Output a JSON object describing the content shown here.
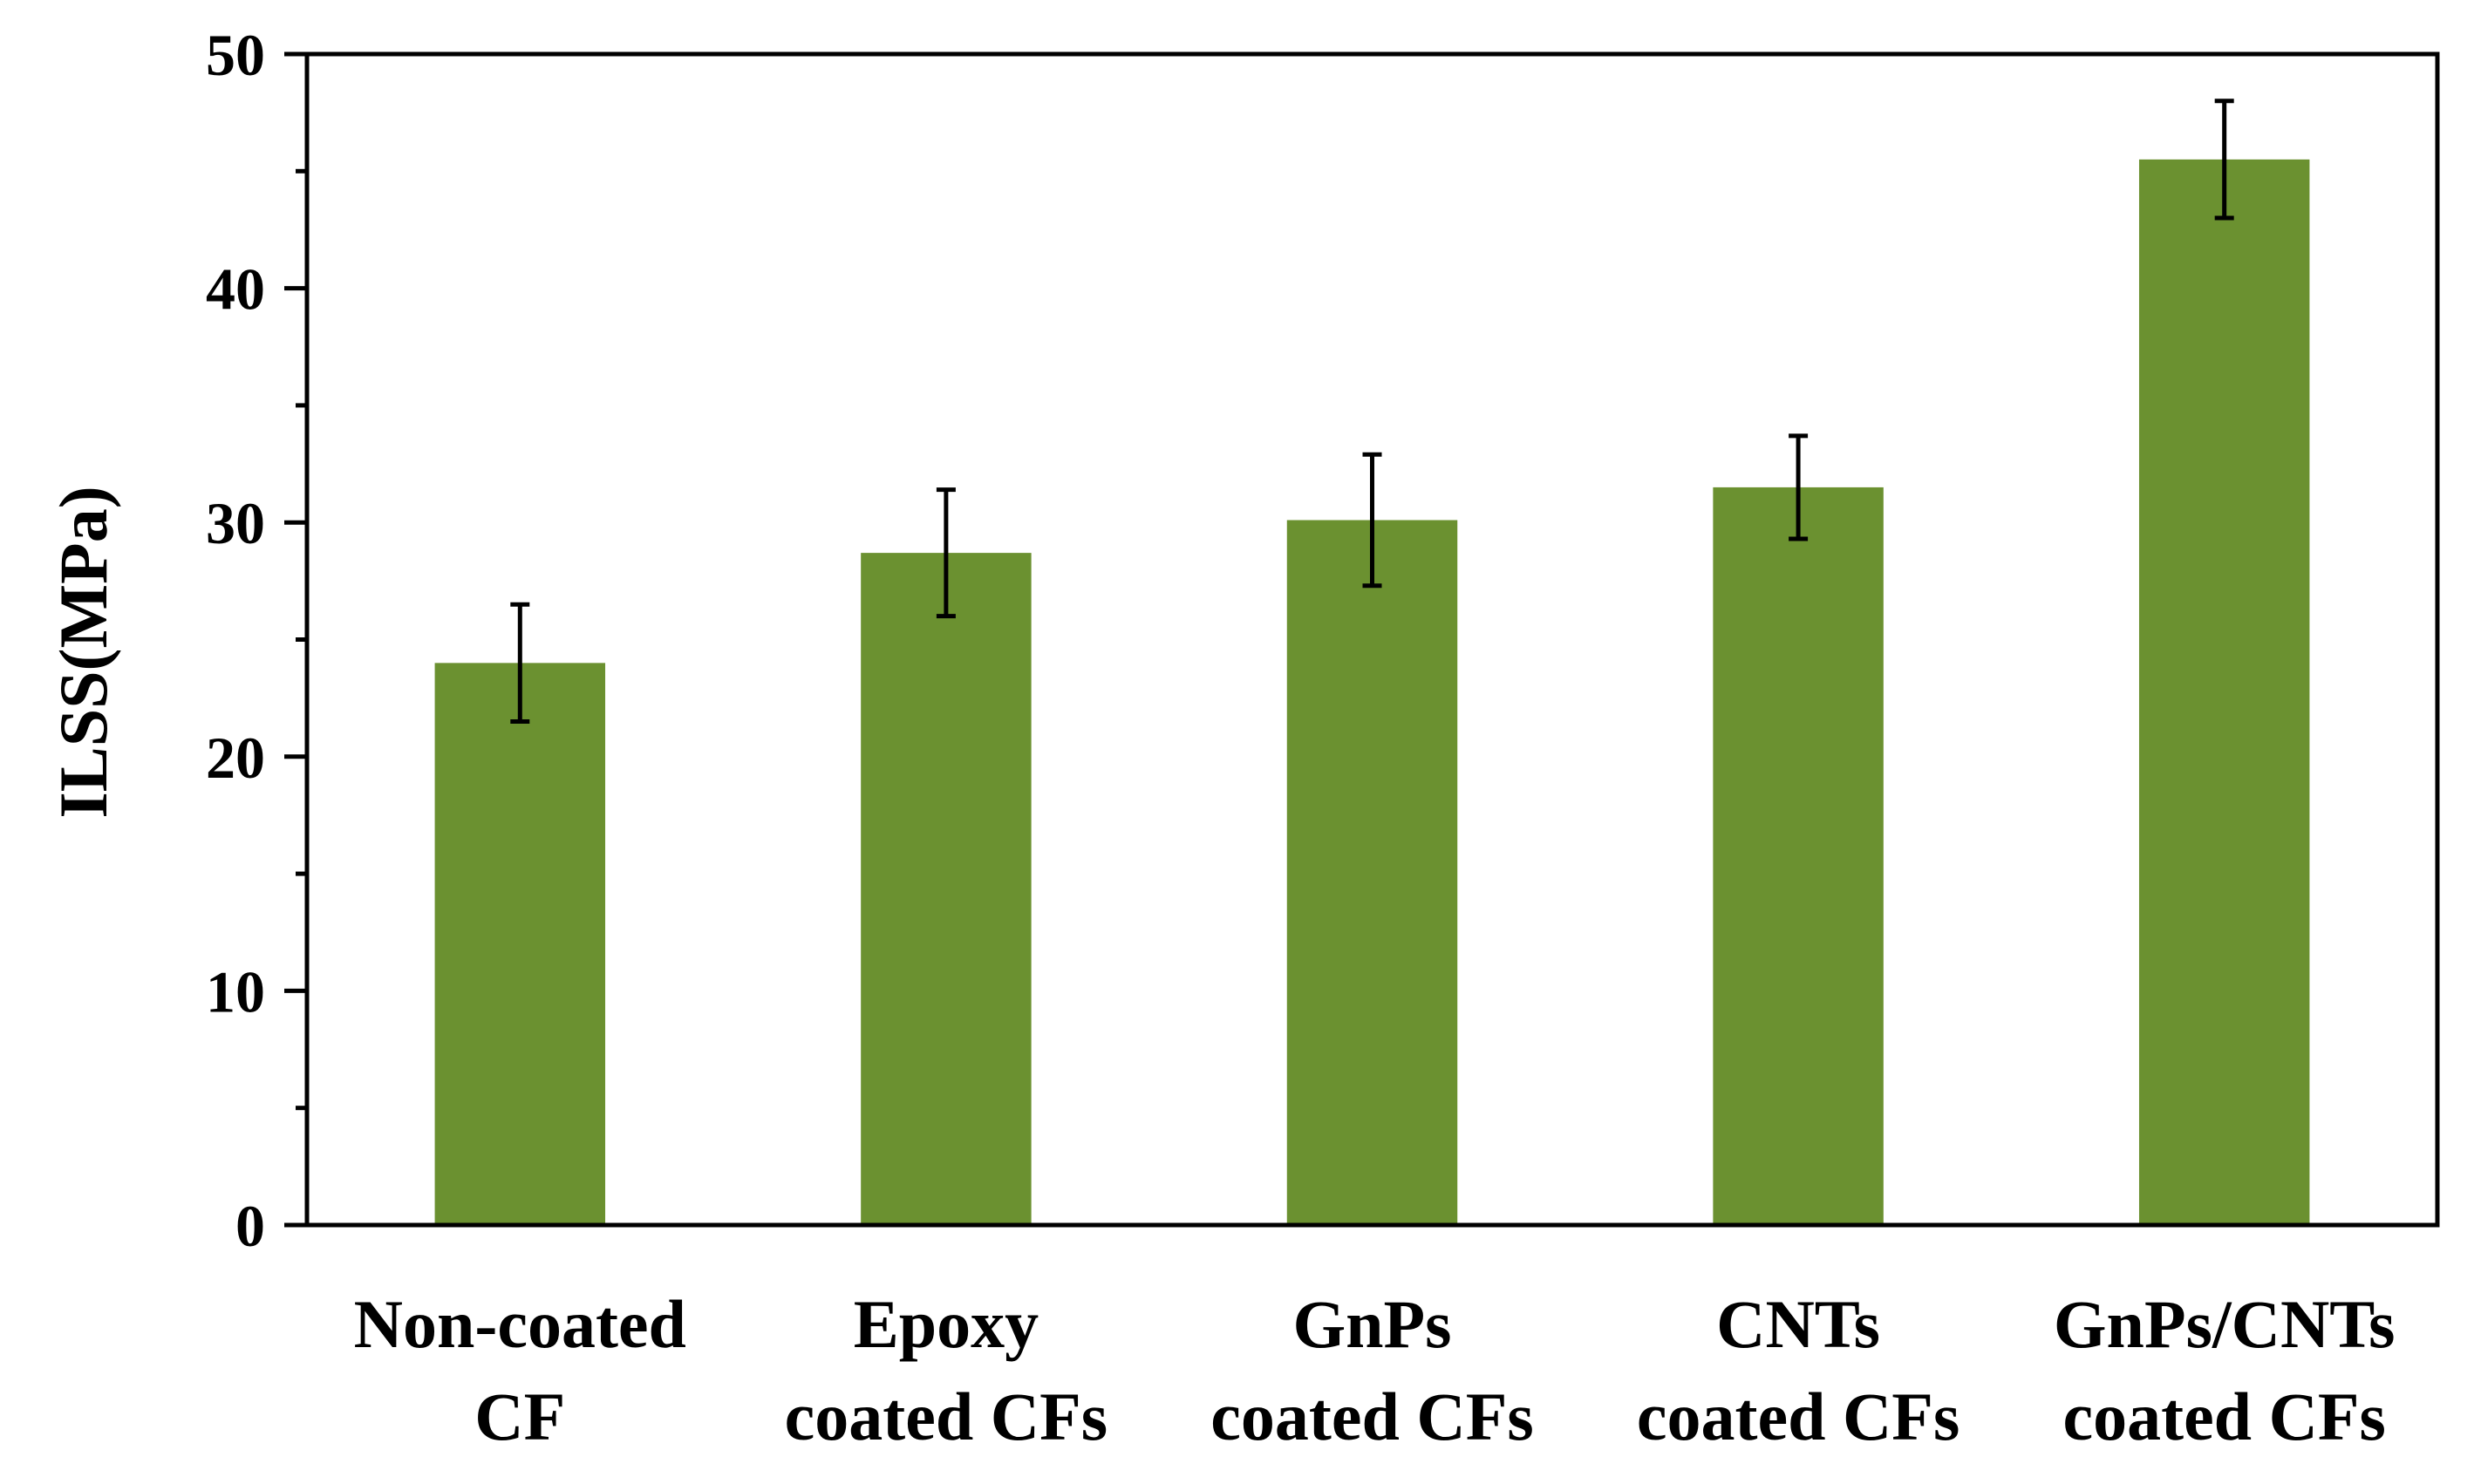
{
  "chart_data": {
    "type": "bar",
    "title": "",
    "xlabel": "",
    "ylabel": "ILSS(MPa)",
    "ylim": [
      0,
      50
    ],
    "y_major_ticks": [
      0,
      10,
      20,
      30,
      40,
      50
    ],
    "y_minor_step": 5,
    "y_tick_labels": [
      "0",
      "10",
      "20",
      "30",
      "40",
      "50"
    ],
    "grid": false,
    "legend": "none",
    "bar_color": "#6b9130",
    "categories": [
      [
        "Non-coated",
        "CF"
      ],
      [
        "Epoxy",
        "coated CFs"
      ],
      [
        "GnPs",
        "coated CFs"
      ],
      [
        "CNTs",
        "coated CFs"
      ],
      [
        "GnPs/CNTs",
        "coated CFs"
      ]
    ],
    "series": [
      {
        "name": "ILSS",
        "values": [
          24.0,
          28.7,
          30.1,
          31.5,
          45.5
        ],
        "error": [
          2.5,
          2.7,
          2.8,
          2.2,
          2.5
        ]
      }
    ]
  }
}
